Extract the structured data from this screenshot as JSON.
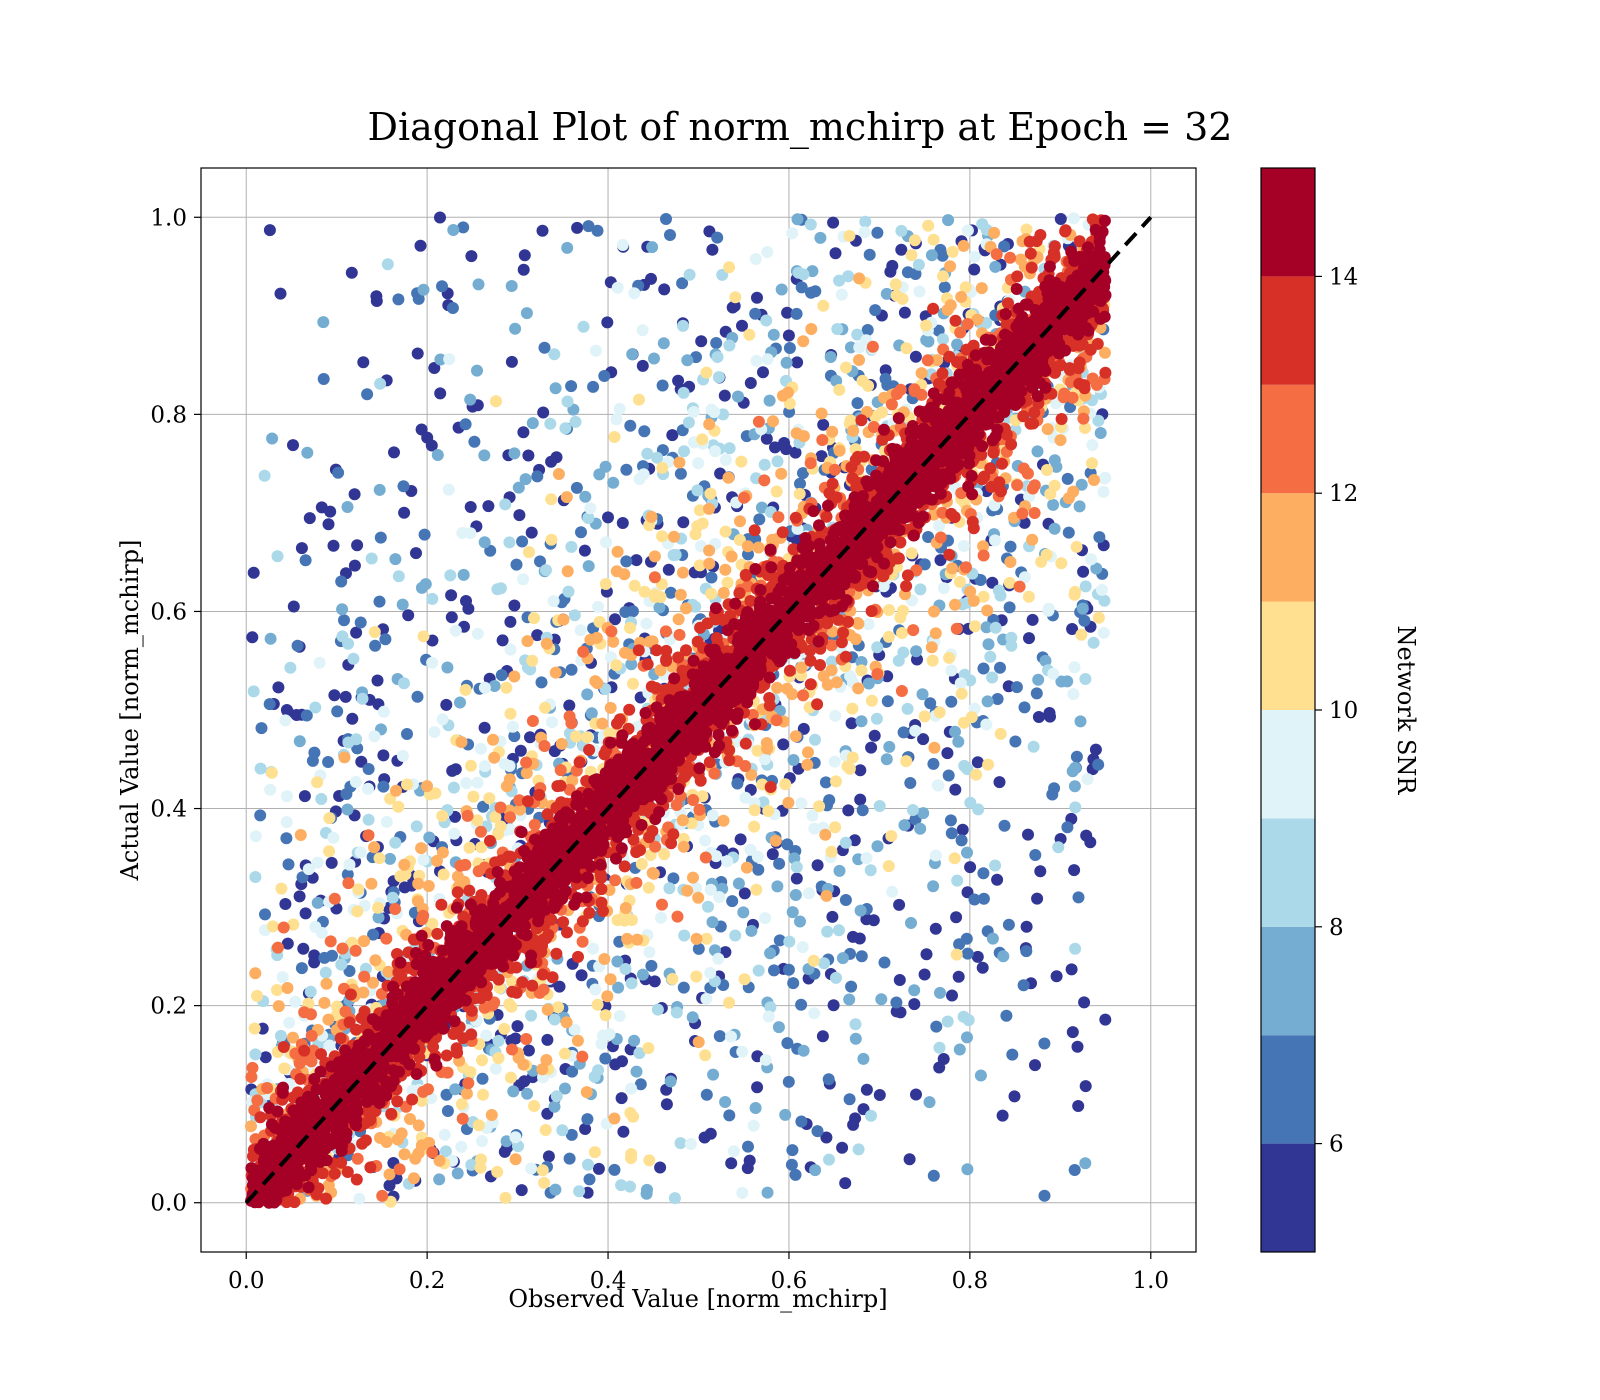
{
  "chart_data": {
    "type": "scatter",
    "title": "Diagonal Plot of norm_mchirp at Epoch = 32",
    "xlabel": "Observed Value [norm_mchirp]",
    "ylabel": "Actual Value [norm_mchirp]",
    "xlim": [
      -0.05,
      1.05
    ],
    "ylim": [
      -0.05,
      1.05
    ],
    "xticks": [
      "0.0",
      "0.2",
      "0.4",
      "0.6",
      "0.8",
      "1.0"
    ],
    "yticks": [
      "0.0",
      "0.2",
      "0.4",
      "0.6",
      "0.8",
      "1.0"
    ],
    "xtick_values": [
      0,
      0.2,
      0.4,
      0.6,
      0.8,
      1.0
    ],
    "ytick_values": [
      0,
      0.2,
      0.4,
      0.6,
      0.8,
      1.0
    ],
    "grid": true,
    "reference_line": {
      "x": [
        0,
        1
      ],
      "y": [
        0,
        1
      ],
      "style": "dashed",
      "color": "#000000"
    },
    "colorbar": {
      "label": "Network SNR",
      "range": [
        5,
        15
      ],
      "ticks": [
        "6",
        "8",
        "10",
        "12",
        "14"
      ],
      "tick_values": [
        6,
        8,
        10,
        12,
        14
      ],
      "colors": [
        "#313695",
        "#4575b4",
        "#74add1",
        "#abd9e9",
        "#e0f3f8",
        "#fee090",
        "#fdae61",
        "#f46d43",
        "#d73027",
        "#a50026"
      ]
    },
    "description_of_points": "dense scatter of samples, high SNR concentrated near the diagonal, low SNR spread widely",
    "sample_points": [
      {
        "x": 0.1,
        "y": 0.1,
        "snr": 15
      },
      {
        "x": 0.3,
        "y": 0.3,
        "snr": 15
      },
      {
        "x": 0.5,
        "y": 0.5,
        "snr": 15
      },
      {
        "x": 0.7,
        "y": 0.7,
        "snr": 15
      },
      {
        "x": 0.9,
        "y": 0.9,
        "snr": 15
      },
      {
        "x": 0.1,
        "y": 0.85,
        "snr": 5.5
      },
      {
        "x": 0.3,
        "y": 0.9,
        "snr": 5.5
      },
      {
        "x": 0.5,
        "y": 0.95,
        "snr": 6
      },
      {
        "x": 0.3,
        "y": 0.05,
        "snr": 8
      },
      {
        "x": 0.6,
        "y": 0.15,
        "snr": 6
      },
      {
        "x": 0.8,
        "y": 0.1,
        "snr": 5.5
      },
      {
        "x": 0.9,
        "y": 0.5,
        "snr": 10
      },
      {
        "x": 0.85,
        "y": 0.35,
        "snr": 7
      }
    ]
  }
}
